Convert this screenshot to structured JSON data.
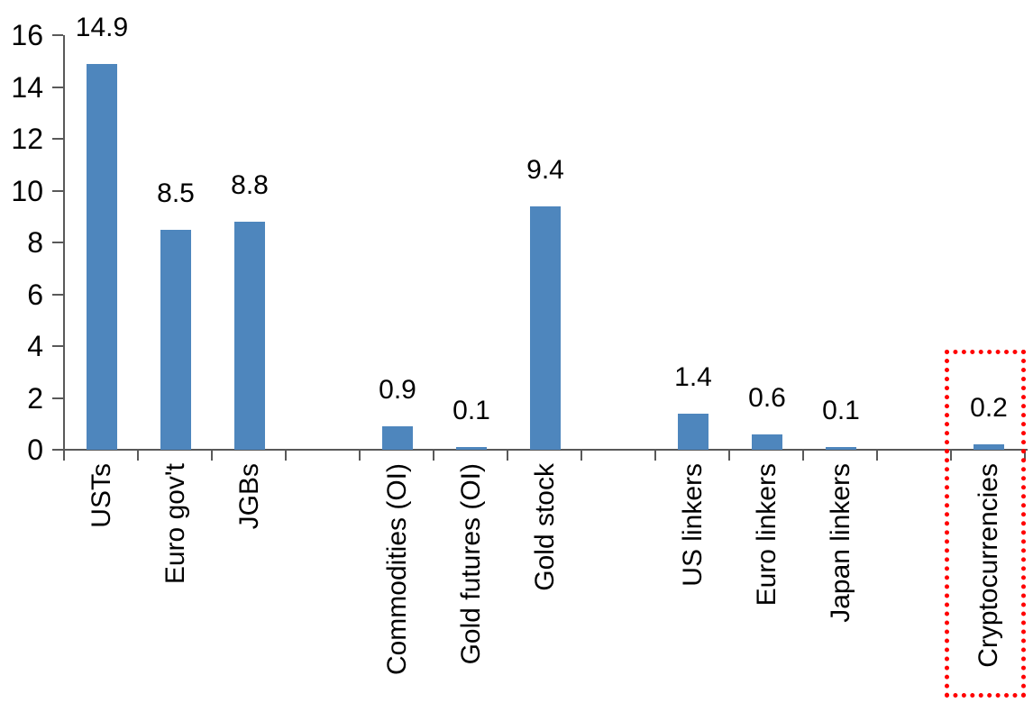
{
  "chart_data": {
    "type": "bar",
    "title": "",
    "xlabel": "",
    "ylabel": "",
    "categories": [
      "USTs",
      "Euro gov't",
      "JGBs",
      "",
      "Commodities (OI)",
      "Gold futures (OI)",
      "Gold stock",
      "",
      "US linkers",
      "Euro linkers",
      "Japan linkers",
      "",
      "Cryptocurrencies"
    ],
    "values": [
      14.9,
      8.5,
      8.8,
      null,
      0.9,
      0.1,
      9.4,
      null,
      1.4,
      0.6,
      0.1,
      null,
      0.2
    ],
    "value_labels": [
      "14.9",
      "8.5",
      "8.8",
      null,
      "0.9",
      "0.1",
      "9.4",
      null,
      "1.4",
      "0.6",
      "0.1",
      null,
      "0.2"
    ],
    "ylim": [
      0,
      16
    ],
    "yticks": [
      0,
      2,
      4,
      6,
      8,
      10,
      12,
      14,
      16
    ],
    "grid": false,
    "legend": null,
    "bar_color": "#4E86BD",
    "axis_color": "#595959",
    "text_color": "#000000",
    "highlight": {
      "category": "Cryptocurrencies",
      "box_color": "#FF0000",
      "box_style": "dotted"
    }
  }
}
